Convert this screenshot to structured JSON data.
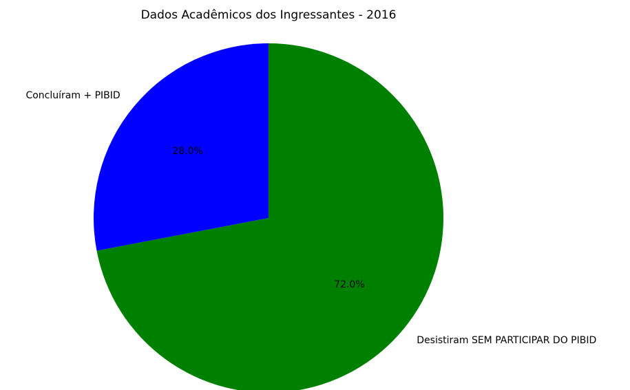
{
  "chart_data": {
    "type": "pie",
    "title": "Dados Acadêmicos dos Ingressantes - 2016",
    "categories": [
      "Concluíram + PIBID",
      "Desistiram SEM PARTICIPAR DO PIBID"
    ],
    "values": [
      28,
      72
    ],
    "value_labels": [
      "28.0%",
      "72.0%"
    ],
    "colors": [
      "blue",
      "green"
    ]
  }
}
